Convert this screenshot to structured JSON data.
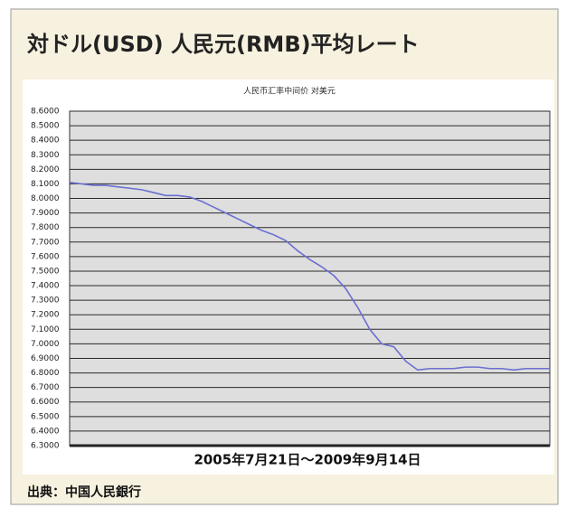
{
  "chart_data": {
    "type": "line",
    "title": "対ドル(USD) 人民元(RMB)平均レート",
    "subtitle": "人民币汇率中间价 对美元",
    "x_label": "2005年7月21日～2009年9月14日",
    "source": "出典：中国人民銀行",
    "color": "#6b6fd0",
    "values": [
      8.11,
      8.1,
      8.09,
      8.09,
      8.08,
      8.07,
      8.06,
      8.04,
      8.02,
      8.02,
      8.01,
      7.98,
      7.94,
      7.9,
      7.86,
      7.82,
      7.78,
      7.75,
      7.71,
      7.64,
      7.58,
      7.53,
      7.47,
      7.38,
      7.25,
      7.1,
      7.0,
      6.98,
      6.88,
      6.82,
      6.83,
      6.83,
      6.83,
      6.84,
      6.84,
      6.83,
      6.83,
      6.82,
      6.83,
      6.83,
      6.83
    ],
    "ylim": [
      6.3,
      8.6
    ],
    "yticks": [
      {
        "value": 8.6,
        "label": "8.6000"
      },
      {
        "value": 8.5,
        "label": "8.5000"
      },
      {
        "value": 8.4,
        "label": "8.4000"
      },
      {
        "value": 8.3,
        "label": "8.3000"
      },
      {
        "value": 8.2,
        "label": "8.2000"
      },
      {
        "value": 8.1,
        "label": "8.1000"
      },
      {
        "value": 8.0,
        "label": "8.0000"
      },
      {
        "value": 7.9,
        "label": "7.9000"
      },
      {
        "value": 7.8,
        "label": "7.8000"
      },
      {
        "value": 7.7,
        "label": "7.7000"
      },
      {
        "value": 7.6,
        "label": "7.6000"
      },
      {
        "value": 7.5,
        "label": "7.5000"
      },
      {
        "value": 7.4,
        "label": "7.4000"
      },
      {
        "value": 7.3,
        "label": "7.3000"
      },
      {
        "value": 7.2,
        "label": "7.2000"
      },
      {
        "value": 7.1,
        "label": "7.1000"
      },
      {
        "value": 7.0,
        "label": "7.0000"
      },
      {
        "value": 6.9,
        "label": "6.9000"
      },
      {
        "value": 6.8,
        "label": "6.8000"
      },
      {
        "value": 6.7,
        "label": "6.7000"
      },
      {
        "value": 6.6,
        "label": "6.6000"
      },
      {
        "value": 6.5,
        "label": "6.5000"
      },
      {
        "value": 6.4,
        "label": "6.4000"
      },
      {
        "value": 6.3,
        "label": "6.3000"
      }
    ],
    "grid": true
  }
}
